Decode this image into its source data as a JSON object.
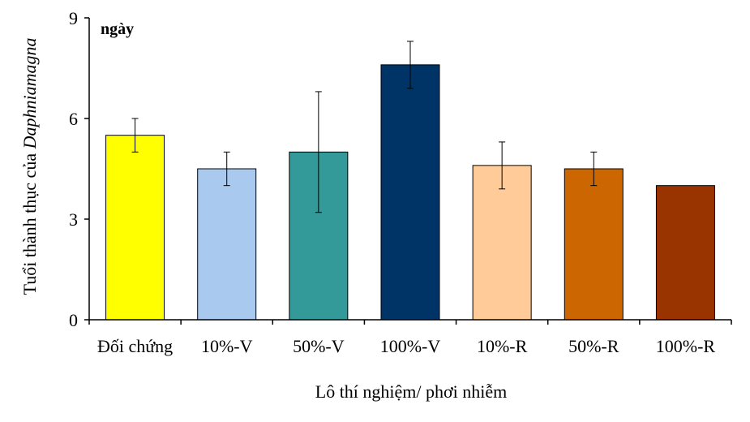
{
  "chart_data": {
    "type": "bar",
    "unit_label": "ngày",
    "xlabel": "Lô thí nghiệm/ phơi nhiễm",
    "ylabel_prefix": "Tuổi thành thục của ",
    "ylabel_species": "Daphniamagna",
    "ylim": [
      0,
      9
    ],
    "yticks": [
      "0",
      "3",
      "6",
      "9"
    ],
    "grid": false,
    "legend": "none",
    "categories": [
      "Đối chứng",
      "10%-V",
      "50%-V",
      "100%-V",
      "10%-R",
      "50%-R",
      "100%-R"
    ],
    "values": [
      5.5,
      4.5,
      5.0,
      7.6,
      4.6,
      4.5,
      4.0
    ],
    "errors": [
      0.5,
      0.5,
      1.8,
      0.7,
      0.7,
      0.5,
      0
    ],
    "colors": [
      "#FFFF00",
      "#A9C9EF",
      "#339999",
      "#003366",
      "#FFCC99",
      "#CC6600",
      "#993300"
    ]
  }
}
